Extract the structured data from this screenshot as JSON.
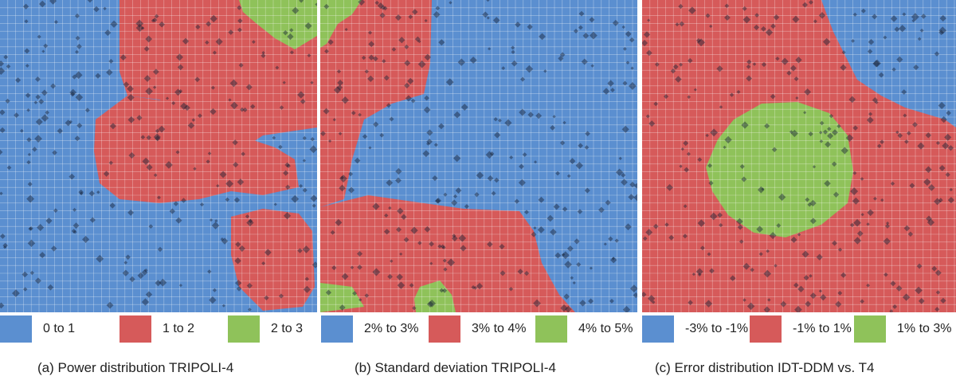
{
  "colors": {
    "blue": "#5b8fd0",
    "red": "#d65a5a",
    "green": "#8fc25a",
    "blue_dark": "#2c4c78",
    "red_dark": "#7a2a2a",
    "green_dark": "#4f7a2a"
  },
  "panels": [
    {
      "id": "a",
      "caption": "(a) Power distribution TRIPOLI-4",
      "legend": [
        {
          "label": "0 to 1",
          "color": "blue"
        },
        {
          "label": "1 to 2",
          "color": "red"
        },
        {
          "label": "2 to 3",
          "color": "green"
        }
      ]
    },
    {
      "id": "b",
      "caption": "(b) Standard deviation TRIPOLI-4",
      "legend": [
        {
          "label": "2% to 3%",
          "color": "blue"
        },
        {
          "label": "3% to 4%",
          "color": "red"
        },
        {
          "label": "4% to 5%",
          "color": "green"
        }
      ]
    },
    {
      "id": "c",
      "caption": "(c) Error distribution IDT-DDM vs. T4",
      "legend": [
        {
          "label": "-3% to -1%",
          "color": "blue"
        },
        {
          "label": "-1% to 1%",
          "color": "red"
        },
        {
          "label": "1% to 3%",
          "color": "green"
        }
      ]
    }
  ]
}
